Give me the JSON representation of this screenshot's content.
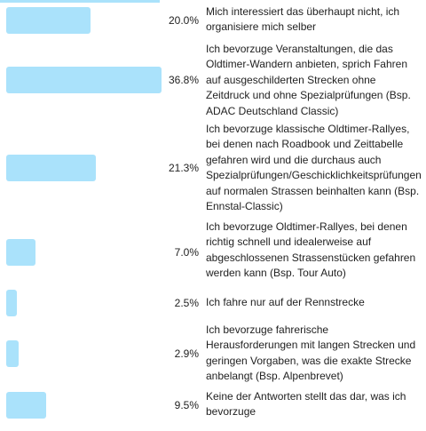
{
  "chart_data": {
    "type": "bar",
    "orientation": "horizontal",
    "bar_color": "#aae2fb",
    "categories": [
      "Mich interessiert das überhaupt nicht, ich organisiere mich selber",
      "Ich bevorzuge Veranstaltungen, die das Oldtimer-Wandern anbieten, sprich Fahren auf ausgeschilderten Strecken ohne Zeitdruck und ohne Spezialprüfungen (Bsp. ADAC Deutschland Classic)",
      "Ich bevorzuge klassische Oldtimer-Rallyes, bei denen nach Roadbook und Zeittabelle gefahren wird und die durchaus auch Spezialprüfungen/Geschicklichkeitsprüfungen auf normalen Strassen beinhalten kann (Bsp. Ennstal-Classic)",
      "Ich bevorzuge Oldtimer-Rallyes, bei denen richtig schnell und idealerweise auf abgeschlossenen Strassenstücken gefahren werden kann (Bsp. Tour Auto)",
      "Ich fahre nur auf der Rennstrecke",
      "Ich bevorzuge fahrerische Herausforderungen mit langen Strecken und geringen Vorgaben, was die exakte Strecke anbelangt (Bsp. Alpenbrevet)",
      "Keine der Antworten stellt das dar, was ich bevorzuge"
    ],
    "values": [
      20.0,
      36.8,
      21.3,
      7.0,
      2.5,
      2.9,
      9.5
    ],
    "value_labels": [
      "20.0%",
      "36.8%",
      "21.3%",
      "7.0%",
      "2.5%",
      "2.9%",
      "9.5%"
    ]
  }
}
